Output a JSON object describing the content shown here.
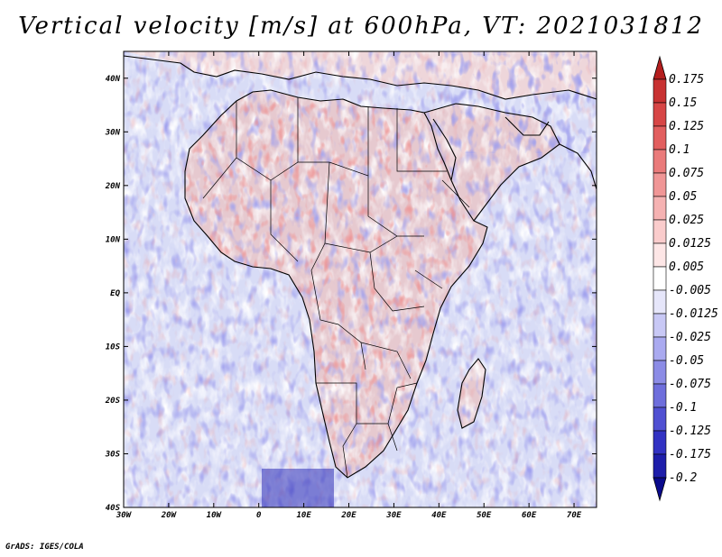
{
  "title": "Vertical velocity [m/s] at 600hPa, VT: 2021031812",
  "footer": "GrADS: IGES/COLA",
  "map": {
    "variable": "Vertical velocity",
    "units": "m/s",
    "level": "600hPa",
    "valid_time": "2021031812",
    "lat_labels": [
      "40N",
      "30N",
      "20N",
      "10N",
      "EQ",
      "10S",
      "20S",
      "30S",
      "40S"
    ],
    "lon_labels": [
      "30W",
      "20W",
      "10W",
      "0",
      "10E",
      "20E",
      "30E",
      "40E",
      "50E",
      "60E",
      "70E"
    ],
    "lat_range": [
      -40,
      45
    ],
    "lon_range": [
      -30,
      75
    ]
  },
  "legend": {
    "labels": [
      "0.175",
      "0.15",
      "0.125",
      "0.1",
      "0.075",
      "0.05",
      "0.025",
      "0.0125",
      "0.005",
      "-0.005",
      "-0.0125",
      "-0.025",
      "-0.05",
      "-0.075",
      "-0.1",
      "-0.125",
      "-0.175",
      "-0.2"
    ],
    "colors": [
      "#b41e1e",
      "#c83232",
      "#d74646",
      "#e25f5f",
      "#ea7b7b",
      "#f09696",
      "#f5b2b2",
      "#facccc",
      "#fde6e6",
      "#ffffff",
      "#e6e6fa",
      "#c8c8f5",
      "#aaaaf0",
      "#8c8ce6",
      "#6e6edc",
      "#5050d2",
      "#3232c3",
      "#1e1eaa",
      "#0a0a8c"
    ]
  },
  "colors": {
    "ocean_base": "#d8dcf6",
    "land_base": "#e6c9cf",
    "desert_base": "#eed6da",
    "coast": "#000000"
  }
}
